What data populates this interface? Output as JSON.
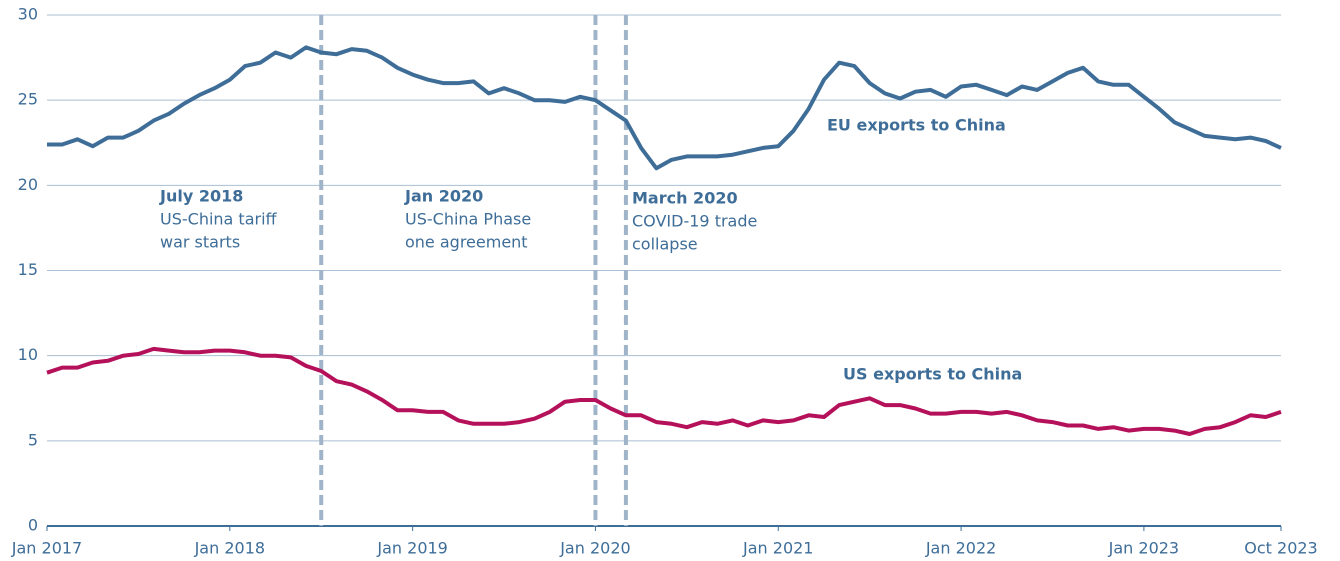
{
  "chart_data": {
    "type": "line",
    "x": [
      "2017-01",
      "2017-02",
      "2017-03",
      "2017-04",
      "2017-05",
      "2017-06",
      "2017-07",
      "2017-08",
      "2017-09",
      "2017-10",
      "2017-11",
      "2017-12",
      "2018-01",
      "2018-02",
      "2018-03",
      "2018-04",
      "2018-05",
      "2018-06",
      "2018-07",
      "2018-08",
      "2018-09",
      "2018-10",
      "2018-11",
      "2018-12",
      "2019-01",
      "2019-02",
      "2019-03",
      "2019-04",
      "2019-05",
      "2019-06",
      "2019-07",
      "2019-08",
      "2019-09",
      "2019-10",
      "2019-11",
      "2019-12",
      "2020-01",
      "2020-02",
      "2020-03",
      "2020-04",
      "2020-05",
      "2020-06",
      "2020-07",
      "2020-08",
      "2020-09",
      "2020-10",
      "2020-11",
      "2020-12",
      "2021-01",
      "2021-02",
      "2021-03",
      "2021-04",
      "2021-05",
      "2021-06",
      "2021-07",
      "2021-08",
      "2021-09",
      "2021-10",
      "2021-11",
      "2021-12",
      "2022-01",
      "2022-02",
      "2022-03",
      "2022-04",
      "2022-05",
      "2022-06",
      "2022-07",
      "2022-08",
      "2022-09",
      "2022-10",
      "2022-11",
      "2022-12",
      "2023-01",
      "2023-02",
      "2023-03",
      "2023-04",
      "2023-05",
      "2023-06",
      "2023-07",
      "2023-08",
      "2023-09",
      "2023-10"
    ],
    "series": [
      {
        "name": "EU exports to China",
        "color": "#3e6d98",
        "values": [
          22.4,
          22.4,
          22.7,
          22.3,
          22.8,
          22.8,
          23.2,
          23.8,
          24.2,
          24.8,
          25.3,
          25.7,
          26.2,
          27.0,
          27.2,
          27.8,
          27.5,
          28.1,
          27.8,
          27.7,
          28.0,
          27.9,
          27.5,
          26.9,
          26.5,
          26.2,
          26.0,
          26.0,
          26.1,
          25.4,
          25.7,
          25.4,
          25.0,
          25.0,
          24.9,
          25.2,
          25.0,
          24.4,
          23.8,
          22.2,
          21.0,
          21.5,
          21.7,
          21.7,
          21.7,
          21.8,
          22.0,
          22.2,
          22.3,
          23.2,
          24.5,
          26.2,
          27.2,
          27.0,
          26.0,
          25.4,
          25.1,
          25.5,
          25.6,
          25.2,
          25.8,
          25.9,
          25.6,
          25.3,
          25.8,
          25.6,
          26.1,
          26.6,
          26.9,
          26.1,
          25.9,
          25.9,
          25.2,
          24.5,
          23.7,
          23.3,
          22.9,
          22.8,
          22.7,
          22.8,
          22.6,
          22.2
        ]
      },
      {
        "name": "US exports to China",
        "color": "#b5115a",
        "values": [
          9.0,
          9.3,
          9.3,
          9.6,
          9.7,
          10.0,
          10.1,
          10.4,
          10.3,
          10.2,
          10.2,
          10.3,
          10.3,
          10.2,
          10.0,
          10.0,
          9.9,
          9.4,
          9.1,
          8.5,
          8.3,
          7.9,
          7.4,
          6.8,
          6.8,
          6.7,
          6.7,
          6.2,
          6.0,
          6.0,
          6.0,
          6.1,
          6.3,
          6.7,
          7.3,
          7.4,
          7.4,
          6.9,
          6.5,
          6.5,
          6.1,
          6.0,
          5.8,
          6.1,
          6.0,
          6.2,
          5.9,
          6.2,
          6.1,
          6.2,
          6.5,
          6.4,
          7.1,
          7.3,
          7.5,
          7.1,
          7.1,
          6.9,
          6.6,
          6.6,
          6.7,
          6.7,
          6.6,
          6.7,
          6.5,
          6.2,
          6.1,
          5.9,
          5.9,
          5.7,
          5.8,
          5.6,
          5.7,
          5.7,
          5.6,
          5.4,
          5.7,
          5.8,
          6.1,
          6.5,
          6.4,
          6.7
        ]
      }
    ],
    "xlim": [
      "2017-01",
      "2023-10"
    ],
    "xticks": [
      {
        "value": "2017-01",
        "label": "Jan 2017"
      },
      {
        "value": "2018-01",
        "label": "Jan 2018"
      },
      {
        "value": "2019-01",
        "label": "Jan 2019"
      },
      {
        "value": "2020-01",
        "label": "Jan 2020"
      },
      {
        "value": "2021-01",
        "label": "Jan 2021"
      },
      {
        "value": "2022-01",
        "label": "Jan 2022"
      },
      {
        "value": "2023-01",
        "label": "Jan 2023"
      },
      {
        "value": "2023-10",
        "label": "Oct 2023"
      }
    ],
    "ylim": [
      0,
      30
    ],
    "yticks": [
      0,
      5,
      10,
      15,
      20,
      25,
      30
    ],
    "grid": true,
    "annotations": [
      {
        "x": "2018-07",
        "title": "July 2018",
        "lines": [
          "US-China tariff",
          "war starts"
        ]
      },
      {
        "x": "2020-01",
        "title": "Jan 2020",
        "lines": [
          "US-China Phase",
          "one agreement"
        ]
      },
      {
        "x": "2020-03",
        "title": "March 2020",
        "lines": [
          "COVID-19 trade",
          "collapse"
        ]
      }
    ]
  }
}
